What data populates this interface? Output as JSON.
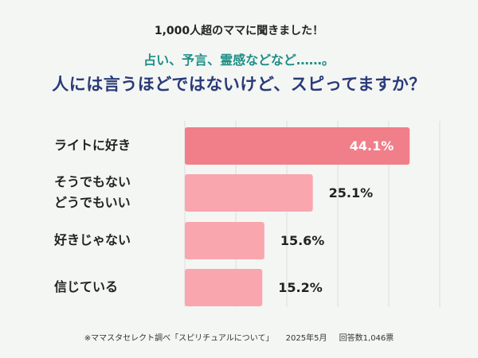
{
  "header": {
    "survey_label": "1,000人超のママに聞きました！",
    "subtitle": "占い、予言、霊感などなど……。",
    "title": "人には言うほどではないけど、スピってますか？"
  },
  "chart_data": {
    "type": "bar",
    "orientation": "horizontal",
    "categories": [
      [
        "ライトに好き"
      ],
      [
        "そうでもない",
        "どうでもいい"
      ],
      [
        "好きじゃない"
      ],
      [
        "信じている"
      ]
    ],
    "values": [
      44.1,
      25.1,
      15.6,
      15.2
    ],
    "value_labels": [
      "44.1%",
      "25.1%",
      "15.6%",
      "15.2%"
    ],
    "xlim": [
      0,
      50
    ],
    "grid": true,
    "colors": {
      "highlight_bar": "#f07f8a",
      "bar": "#f9a6ae",
      "highlight_label": "#ffffff",
      "label": "#222222",
      "grid": "#dddddd"
    }
  },
  "footer": {
    "source": "※ママスタセレクト調べ「スピリチュアルについて」",
    "date": "2025年5月",
    "respondents": "回答数1,046票"
  }
}
